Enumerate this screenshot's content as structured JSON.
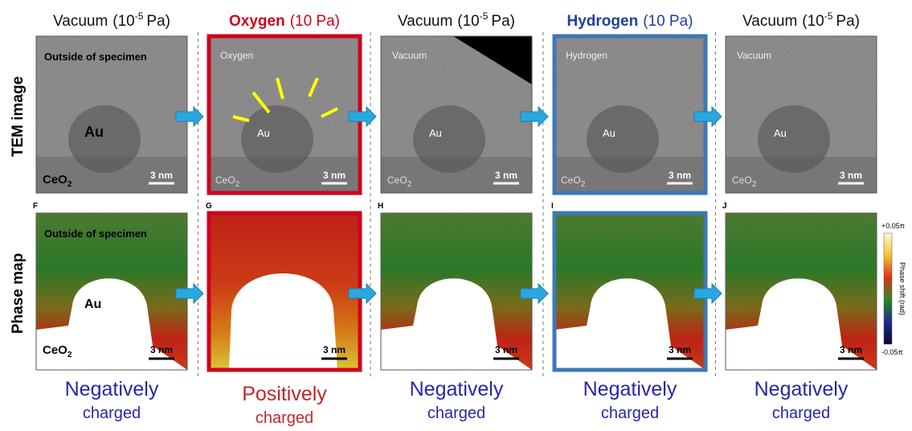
{
  "row_labels": [
    "TEM image",
    "Phase map"
  ],
  "columns": [
    {
      "gas": "Vacuum",
      "pressure_prefix": "(10",
      "exponent": "-5",
      "pressure_suffix": "Pa)",
      "tem_labels": [
        "Outside of specimen",
        "Au"
      ],
      "tem_ceo": {
        "text": "CeO",
        "sub": "2"
      },
      "tem_scale": "3 nm",
      "phase_letter": "F",
      "phase_labels": [
        "Outside of specimen",
        "Au"
      ],
      "phase_ceo": {
        "text": "CeO",
        "sub": "2"
      },
      "phase_scale": "3 nm",
      "charge": [
        "Negatively",
        "charged"
      ],
      "charge_color": "#2727a8"
    },
    {
      "gas": "Oxygen",
      "pressure": "(10 Pa)",
      "highlight": "#d0021b",
      "tem_labels": [
        "Oxygen",
        "Au"
      ],
      "tem_ceo": {
        "text": "CeO",
        "sub": "2"
      },
      "tem_scale": "3 nm",
      "phase_letter": "G",
      "phase_scale": "3 nm",
      "charge": [
        "Positively",
        "charged"
      ],
      "charge_color": "#c0262a"
    },
    {
      "gas": "Vacuum",
      "pressure_prefix": "(10",
      "exponent": "-5",
      "pressure_suffix": "Pa)",
      "tem_labels": [
        "Vacuum",
        "Au"
      ],
      "tem_ceo": {
        "text": "CeO",
        "sub": "2"
      },
      "tem_scale": "3 nm",
      "phase_letter": "H",
      "phase_scale": "3 nm",
      "charge": [
        "Negatively",
        "charged"
      ],
      "charge_color": "#2727a8"
    },
    {
      "gas": "Hydrogen",
      "pressure": "(10 Pa)",
      "highlight": "#1f3f9f",
      "border": "#3d78b5",
      "tem_labels": [
        "Hydrogen",
        "Au"
      ],
      "tem_ceo": {
        "text": "CeO",
        "sub": "2"
      },
      "tem_scale": "3 nm",
      "phase_letter": "I",
      "phase_scale": "3 nm",
      "charge": [
        "Negatively",
        "charged"
      ],
      "charge_color": "#2727a8"
    },
    {
      "gas": "Vacuum",
      "pressure_prefix": "(10",
      "exponent": "-5",
      "pressure_suffix": "Pa)",
      "tem_labels": [
        "Vacuum",
        "Au"
      ],
      "tem_ceo": {
        "text": "CeO",
        "sub": "2"
      },
      "tem_scale": "3 nm",
      "phase_letter": "J",
      "phase_scale": "3 nm",
      "charge": [
        "Negatively",
        "charged"
      ],
      "charge_color": "#2727a8"
    }
  ],
  "colorbar": {
    "top": "+0.05π",
    "title": "Phase shift (rad)",
    "bottom": "-0.05π"
  }
}
